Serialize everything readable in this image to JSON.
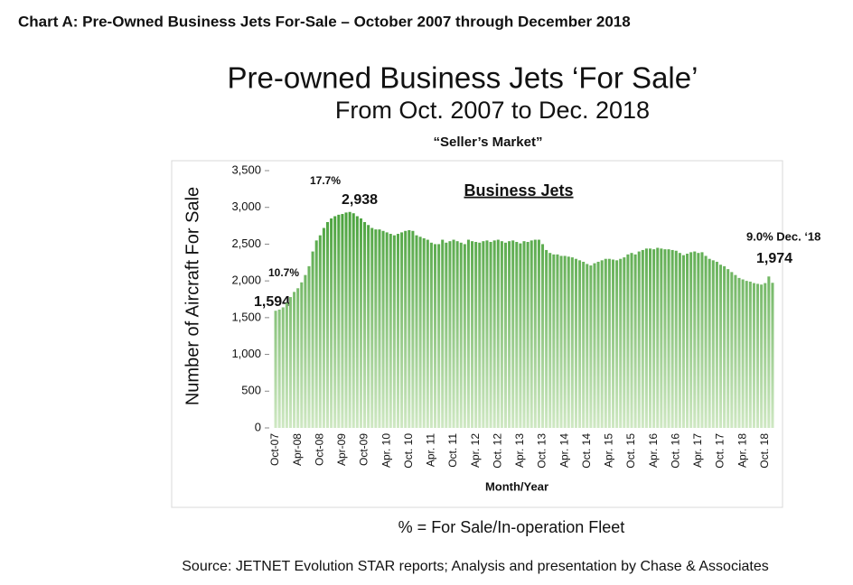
{
  "chart_data": {
    "type": "bar",
    "header": "Chart A: Pre-Owned Business Jets For-Sale – October 2007 through December 2018",
    "title": "Pre-owned Business Jets ‘For Sale’",
    "subtitle": "From Oct. 2007 to Dec. 2018",
    "subtitle2": "“Seller’s Market”",
    "series_label": "Business Jets",
    "y_label": "Number  of Aircraft For Sale",
    "x_label": "Month/Year",
    "note": "% = For Sale/In-operation Fleet",
    "source": "Source: JETNET Evolution STAR reports; Analysis and presentation by Chase & Associates",
    "annotations": [
      "10.7%",
      "17.7%",
      "9.0% Dec. ‘18"
    ],
    "color": "#2f9421",
    "grid": false,
    "ylim": [
      0,
      3500
    ],
    "yticks": [
      0,
      500,
      {
        "value": 1000,
        "label": "1,000"
      },
      {
        "value": 1500,
        "label": "1,500"
      },
      {
        "value": 2000,
        "label": "2,000"
      },
      {
        "value": 2500,
        "label": "2,500"
      },
      {
        "value": 3000,
        "label": "3,000"
      },
      {
        "value": 3500,
        "label": "3,500"
      }
    ],
    "categories": [
      "Oct-07",
      null,
      null,
      null,
      null,
      null,
      "Apr-08",
      null,
      null,
      null,
      null,
      null,
      "Oct-08",
      null,
      null,
      null,
      null,
      null,
      "Apr-09",
      null,
      null,
      null,
      null,
      null,
      "Oct-09",
      null,
      null,
      null,
      null,
      null,
      "Apr. 10",
      null,
      null,
      null,
      null,
      null,
      "Oct. 10",
      null,
      null,
      null,
      null,
      null,
      "Apr. 11",
      null,
      null,
      null,
      null,
      null,
      "Oct. 11",
      null,
      null,
      null,
      null,
      null,
      "Apr. 12",
      null,
      null,
      null,
      null,
      null,
      "Oct. 12",
      null,
      null,
      null,
      null,
      null,
      "Apr. 13",
      null,
      null,
      null,
      null,
      null,
      "Oct. 13",
      null,
      null,
      null,
      null,
      null,
      "Apr. 14",
      null,
      null,
      null,
      null,
      null,
      "Oct. 14",
      null,
      null,
      null,
      null,
      null,
      "Apr. 15",
      null,
      null,
      null,
      null,
      null,
      "Oct. 15",
      null,
      null,
      null,
      null,
      null,
      "Apr. 16",
      null,
      null,
      null,
      null,
      null,
      "Oct. 16",
      null,
      null,
      null,
      null,
      null,
      "Apr. 17",
      null,
      null,
      null,
      null,
      null,
      "Oct. 17",
      null,
      null,
      null,
      null,
      null,
      "Apr. 18",
      null,
      null,
      null,
      null,
      null,
      "Oct. 18",
      null,
      null
    ],
    "values": [
      1594,
      1610,
      1640,
      1700,
      1780,
      1850,
      1900,
      1980,
      2080,
      2200,
      2400,
      2550,
      2620,
      2720,
      2800,
      2850,
      2880,
      2900,
      2910,
      2930,
      2938,
      2920,
      2880,
      2850,
      2800,
      2760,
      2720,
      2700,
      2700,
      2680,
      2660,
      2640,
      2620,
      2640,
      2660,
      2680,
      2690,
      2680,
      2620,
      2600,
      2580,
      2560,
      2520,
      2500,
      2500,
      2560,
      2520,
      2540,
      2560,
      2540,
      2520,
      2500,
      2560,
      2540,
      2530,
      2520,
      2540,
      2550,
      2530,
      2550,
      2560,
      2540,
      2520,
      2540,
      2550,
      2530,
      2510,
      2540,
      2530,
      2550,
      2560,
      2560,
      2500,
      2420,
      2380,
      2360,
      2360,
      2340,
      2340,
      2330,
      2320,
      2300,
      2280,
      2260,
      2230,
      2210,
      2240,
      2260,
      2280,
      2300,
      2300,
      2290,
      2280,
      2300,
      2320,
      2360,
      2380,
      2360,
      2400,
      2420,
      2440,
      2440,
      2430,
      2450,
      2440,
      2430,
      2430,
      2420,
      2410,
      2380,
      2350,
      2370,
      2390,
      2400,
      2380,
      2390,
      2340,
      2300,
      2280,
      2260,
      2220,
      2200,
      2160,
      2120,
      2080,
      2040,
      2020,
      2000,
      1990,
      1970,
      1960,
      1950,
      1970,
      2060,
      1974
    ],
    "value_labels": [
      "1,594",
      null,
      null,
      null,
      null,
      null,
      null,
      null,
      null,
      null,
      null,
      null,
      null,
      null,
      null,
      null,
      null,
      null,
      null,
      null,
      "2,938",
      null,
      null,
      null,
      null,
      null,
      null,
      null,
      null,
      null,
      null,
      null,
      null,
      null,
      null,
      null,
      null,
      null,
      null,
      null,
      null,
      null,
      null,
      null,
      null,
      null,
      null,
      null,
      null,
      null,
      null,
      null,
      null,
      null,
      null,
      null,
      null,
      null,
      null,
      null,
      null,
      null,
      null,
      null,
      null,
      null,
      null,
      null,
      null,
      null,
      null,
      null,
      null,
      null,
      null,
      null,
      null,
      null,
      null,
      null,
      null,
      null,
      null,
      null,
      null,
      null,
      null,
      null,
      null,
      null,
      null,
      null,
      null,
      null,
      null,
      null,
      null,
      null,
      null,
      null,
      null,
      null,
      null,
      null,
      null,
      null,
      null,
      null,
      null,
      null,
      null,
      null,
      null,
      null,
      null,
      null,
      null,
      null,
      null,
      null,
      null,
      null,
      null,
      null,
      null,
      null,
      null,
      null,
      null,
      null,
      null,
      null,
      null,
      null,
      "1,974"
    ]
  }
}
